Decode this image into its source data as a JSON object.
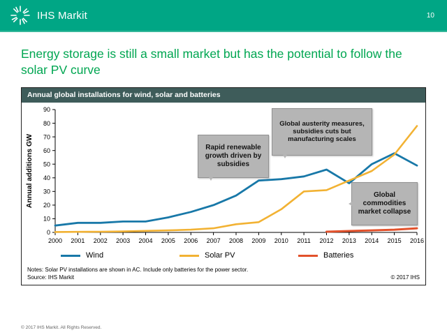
{
  "header": {
    "brand": "IHS Markit",
    "page_number": "10",
    "brand_color": "#00a685"
  },
  "title": "Energy storage is still a small market but has the potential to follow the solar PV curve",
  "title_color": "#00a651",
  "chart": {
    "header": "Annual global installations for wind, solar  and batteries"
  },
  "chart_data": {
    "type": "line",
    "title": "Annual global installations for wind, solar  and batteries",
    "xlabel": "",
    "ylabel": "Annual additions GW",
    "ylim": [
      0,
      90
    ],
    "ytick_step": 10,
    "grid": false,
    "legend_position": "bottom",
    "x": [
      2000,
      2001,
      2002,
      2003,
      2004,
      2005,
      2006,
      2007,
      2008,
      2009,
      2010,
      2011,
      2012,
      2013,
      2014,
      2015,
      2016
    ],
    "series": [
      {
        "name": "Wind",
        "color": "#1878a8",
        "width": 2.8,
        "values": [
          5,
          7,
          7,
          8,
          8,
          11,
          15,
          20,
          27,
          38,
          39,
          41,
          46,
          36,
          50,
          58,
          49
        ]
      },
      {
        "name": "Solar PV",
        "color": "#f2b233",
        "width": 2.6,
        "values": [
          0.3,
          0.4,
          0.5,
          0.7,
          1.1,
          1.5,
          2,
          3,
          6,
          7.5,
          17,
          30,
          31,
          38,
          45,
          57,
          78
        ]
      },
      {
        "name": "Batteries",
        "color": "#e2512b",
        "width": 3,
        "values": [
          null,
          null,
          null,
          null,
          null,
          null,
          null,
          null,
          null,
          null,
          null,
          null,
          0.5,
          1,
          1.5,
          2,
          3
        ]
      }
    ]
  },
  "annotations": [
    {
      "text": "Rapid renewable growth driven by subsidies"
    },
    {
      "text": "Global austerity measures, subsidies cuts but manufacturing scales"
    },
    {
      "text": "Global commodities market collapse"
    }
  ],
  "notes_line": "Notes: Solar PV installations are shown in AC. Include only batteries for the power sector.",
  "source_line": "Source: IHS Markit",
  "chart_copyright": "© 2017 IHS",
  "footer": "© 2017 IHS Markit. All Rights Reserved."
}
